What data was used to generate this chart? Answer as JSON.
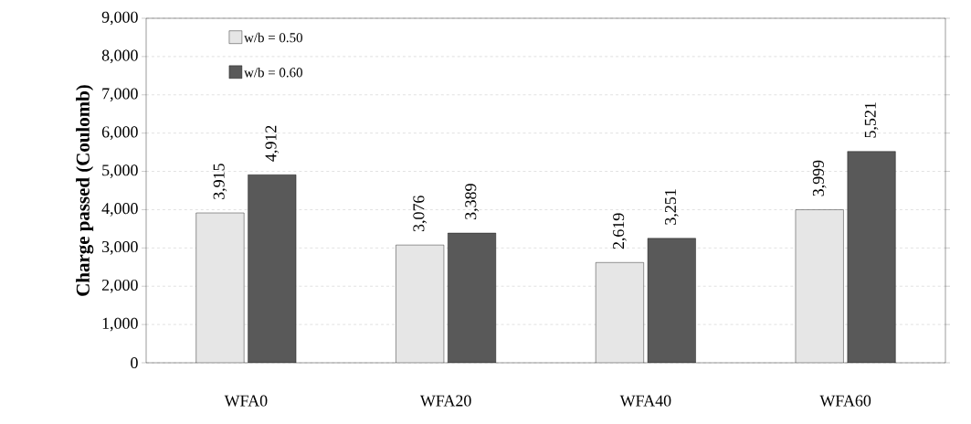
{
  "chart_data": {
    "type": "bar",
    "ylabel": "Charge passed (Coulomb)",
    "categories": [
      "WFA0",
      "WFA20",
      "WFA40",
      "WFA60"
    ],
    "series": [
      {
        "name": "w/b = 0.50",
        "color": "#e6e6e6",
        "values": [
          3915,
          3076,
          2619,
          3999
        ],
        "value_labels": [
          "3,915",
          "3,076",
          "2,619",
          "3,999"
        ]
      },
      {
        "name": "w/b = 0.60",
        "color": "#595959",
        "values": [
          4912,
          3389,
          3251,
          5521
        ],
        "value_labels": [
          "4,912",
          "3,389",
          "3,251",
          "5,521"
        ]
      }
    ],
    "ylim": [
      0,
      9000
    ],
    "yticks": [
      0,
      {
        "value": 1000,
        "label": "1,000"
      },
      {
        "value": 2000,
        "label": "2,000"
      },
      {
        "value": 3000,
        "label": "3,000"
      },
      {
        "value": 4000,
        "label": "4,000"
      },
      {
        "value": 5000,
        "label": "5,000"
      },
      {
        "value": 6000,
        "label": "6,000"
      },
      {
        "value": 7000,
        "label": "7,000"
      },
      {
        "value": 8000,
        "label": "8,000"
      },
      {
        "value": 9000,
        "label": "9,000"
      }
    ],
    "grid": "y",
    "legend": "top left"
  }
}
